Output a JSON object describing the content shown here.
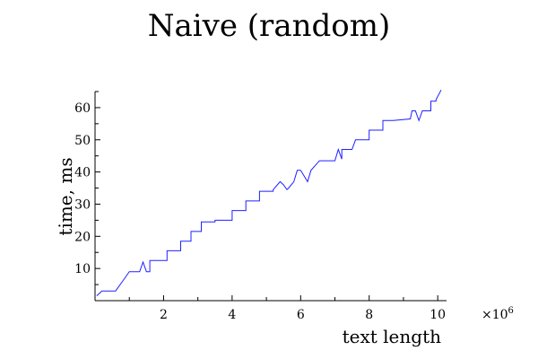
{
  "chart_data": {
    "type": "line",
    "title": "Naive (random)",
    "xlabel": "text length",
    "ylabel": "time, ms",
    "x_multiplier_label": "×10",
    "x_multiplier_exponent": "6",
    "xlim": [
      0,
      10.1
    ],
    "ylim": [
      0,
      65
    ],
    "x_ticks": [
      2,
      4,
      6,
      8,
      10
    ],
    "y_ticks": [
      10,
      20,
      30,
      40,
      50,
      60
    ],
    "grid": false,
    "series": [
      {
        "color": "#2020ff",
        "x": [
          0.05,
          0.2,
          0.2,
          0.6,
          0.6,
          0.8,
          0.8,
          1.0,
          1.0,
          1.3,
          1.4,
          1.5,
          1.6,
          1.6,
          1.7,
          1.7,
          2.1,
          2.1,
          2.5,
          2.5,
          2.8,
          2.8,
          3.1,
          3.1,
          3.5,
          3.5,
          4.0,
          4.0,
          4.4,
          4.4,
          4.8,
          4.8,
          5.2,
          5.2,
          5.4,
          5.5,
          5.6,
          5.65,
          5.8,
          5.9,
          6.0,
          6.2,
          6.3,
          6.3,
          6.55,
          6.55,
          7.0,
          7.1,
          7.2,
          7.2,
          7.5,
          7.6,
          7.6,
          8.0,
          8.0,
          8.4,
          8.4,
          8.7,
          8.7,
          9.2,
          9.25,
          9.35,
          9.45,
          9.55,
          9.6,
          9.8,
          9.8,
          9.95,
          9.95,
          10.1
        ],
        "y": [
          1.5,
          3.0,
          3.0,
          3.0,
          3.0,
          6.0,
          6.0,
          9.0,
          9.0,
          9.0,
          12.0,
          9.0,
          9.0,
          12.5,
          12.5,
          12.5,
          12.5,
          15.5,
          15.5,
          18.5,
          18.5,
          21.5,
          21.5,
          24.5,
          24.5,
          25.0,
          25.0,
          28.0,
          28.0,
          31.0,
          31.0,
          34.0,
          34.0,
          34.5,
          37.0,
          36.0,
          34.5,
          35.0,
          37.0,
          40.5,
          40.5,
          37.0,
          40.5,
          40.5,
          43.5,
          43.5,
          43.5,
          47.0,
          44.0,
          47.0,
          47.0,
          50.0,
          50.0,
          50.0,
          53.0,
          53.0,
          56.0,
          56.0,
          56.0,
          56.5,
          59.0,
          59.0,
          56.0,
          59.0,
          59.0,
          59.0,
          62.0,
          62.0,
          62.5,
          65.5
        ]
      }
    ]
  }
}
